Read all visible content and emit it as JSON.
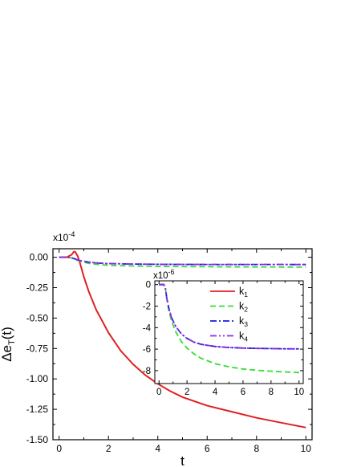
{
  "chart_data": [
    {
      "type": "line",
      "ylabel_main": "Δe",
      "ylabel_sub": "T",
      "ylabel_tail": "(t)",
      "xlabel": "t",
      "multiplier_base": "x10",
      "multiplier_exp": "-4",
      "xlim": [
        -0.25,
        10.25
      ],
      "ylim": [
        -1.5,
        0.07
      ],
      "xticks": [
        0,
        2,
        4,
        6,
        8,
        10
      ],
      "xtick_labels": [
        "0",
        "2",
        "4",
        "6",
        "8",
        "10"
      ],
      "yticks": [
        0.0,
        -0.25,
        -0.5,
        -0.75,
        -1.0,
        -1.25,
        -1.5
      ],
      "ytick_labels": [
        "0.00",
        "-0.25",
        "-0.50",
        "-0.75",
        "-1.00",
        "-1.25",
        "-1.50"
      ],
      "grid": false,
      "series": [
        {
          "name": "k1",
          "color": "#e02020",
          "dash": "solid",
          "x": [
            0,
            0.3,
            0.5,
            0.6,
            0.65,
            0.75,
            0.85,
            1.0,
            1.2,
            1.5,
            2,
            2.5,
            3,
            3.5,
            4,
            4.5,
            5,
            6,
            7,
            8,
            9,
            10
          ],
          "y": [
            0,
            0,
            0.02,
            0.045,
            0.045,
            0.01,
            -0.05,
            -0.16,
            -0.28,
            -0.43,
            -0.62,
            -0.77,
            -0.88,
            -0.97,
            -1.04,
            -1.1,
            -1.15,
            -1.22,
            -1.27,
            -1.32,
            -1.36,
            -1.4
          ]
        },
        {
          "name": "k2",
          "color": "#33dd33",
          "dash": "dash",
          "x": [
            0,
            0.3,
            0.5,
            0.8,
            1.2,
            1.6,
            2,
            3,
            4,
            6,
            8,
            10
          ],
          "y": [
            0,
            0,
            -0.005,
            -0.03,
            -0.05,
            -0.06,
            -0.066,
            -0.072,
            -0.075,
            -0.078,
            -0.08,
            -0.081
          ]
        },
        {
          "name": "k3",
          "color": "#1a1adf",
          "dash": "dashdot",
          "x": [
            0,
            0.3,
            0.5,
            0.8,
            1.2,
            1.6,
            2,
            3,
            4,
            6,
            8,
            10
          ],
          "y": [
            0,
            0,
            -0.004,
            -0.025,
            -0.04,
            -0.048,
            -0.052,
            -0.056,
            -0.058,
            -0.059,
            -0.059,
            -0.06
          ]
        },
        {
          "name": "k4",
          "color": "#8a2be2",
          "dash": "dashdotdot",
          "x": [
            0,
            0.3,
            0.5,
            0.8,
            1.2,
            1.6,
            2,
            3,
            4,
            6,
            8,
            10
          ],
          "y": [
            0,
            0,
            -0.004,
            -0.025,
            -0.04,
            -0.048,
            -0.052,
            -0.056,
            -0.058,
            -0.059,
            -0.059,
            -0.06
          ]
        }
      ]
    },
    {
      "type": "line",
      "multiplier_base": "x10",
      "multiplier_exp": "-6",
      "xlim": [
        -0.3,
        10.3
      ],
      "ylim": [
        -9.2,
        0.35
      ],
      "xticks": [
        0,
        2,
        4,
        6,
        8,
        10
      ],
      "xtick_labels": [
        "0",
        "2",
        "4",
        "6",
        "8",
        "10"
      ],
      "yticks": [
        0,
        -2,
        -4,
        -6,
        -8
      ],
      "ytick_labels": [
        "0",
        "-2",
        "-4",
        "-6",
        "-8"
      ],
      "grid": false,
      "legend_position": "top-right",
      "series": [
        {
          "name": "k1",
          "label": "k",
          "label_sub": "1",
          "color": "#e02020",
          "dash": "solid",
          "x": [],
          "y": []
        },
        {
          "name": "k2",
          "label": "k",
          "label_sub": "2",
          "color": "#33dd33",
          "dash": "dash",
          "x": [
            0,
            0.2,
            0.35,
            0.45,
            0.55,
            0.7,
            0.9,
            1.2,
            1.6,
            2,
            2.5,
            3,
            4,
            5,
            6,
            7,
            8,
            9,
            10
          ],
          "y": [
            0,
            0,
            0,
            -0.3,
            -1.3,
            -2.4,
            -3.4,
            -4.4,
            -5.3,
            -5.9,
            -6.45,
            -6.85,
            -7.35,
            -7.65,
            -7.85,
            -7.97,
            -8.05,
            -8.12,
            -8.18
          ]
        },
        {
          "name": "k3",
          "label": "k",
          "label_sub": "3",
          "color": "#1a1adf",
          "dash": "dashdot",
          "x": [
            0,
            0.2,
            0.35,
            0.45,
            0.55,
            0.7,
            0.9,
            1.2,
            1.6,
            2,
            2.5,
            3,
            4,
            5,
            6,
            7,
            8,
            9,
            10
          ],
          "y": [
            0,
            0,
            0,
            -0.3,
            -1.2,
            -2.2,
            -3.1,
            -3.9,
            -4.6,
            -5.0,
            -5.35,
            -5.55,
            -5.75,
            -5.85,
            -5.9,
            -5.93,
            -5.95,
            -5.97,
            -5.98
          ]
        },
        {
          "name": "k4",
          "label": "k",
          "label_sub": "4",
          "color": "#8a2be2",
          "dash": "dashdotdot",
          "x": [
            0,
            0.2,
            0.35,
            0.45,
            0.55,
            0.7,
            0.9,
            1.2,
            1.6,
            2,
            2.5,
            3,
            4,
            5,
            6,
            7,
            8,
            9,
            10
          ],
          "y": [
            0,
            0,
            0,
            -0.3,
            -1.2,
            -2.2,
            -3.1,
            -3.9,
            -4.6,
            -5.0,
            -5.35,
            -5.55,
            -5.75,
            -5.85,
            -5.9,
            -5.93,
            -5.95,
            -5.97,
            -5.98
          ]
        }
      ]
    }
  ]
}
